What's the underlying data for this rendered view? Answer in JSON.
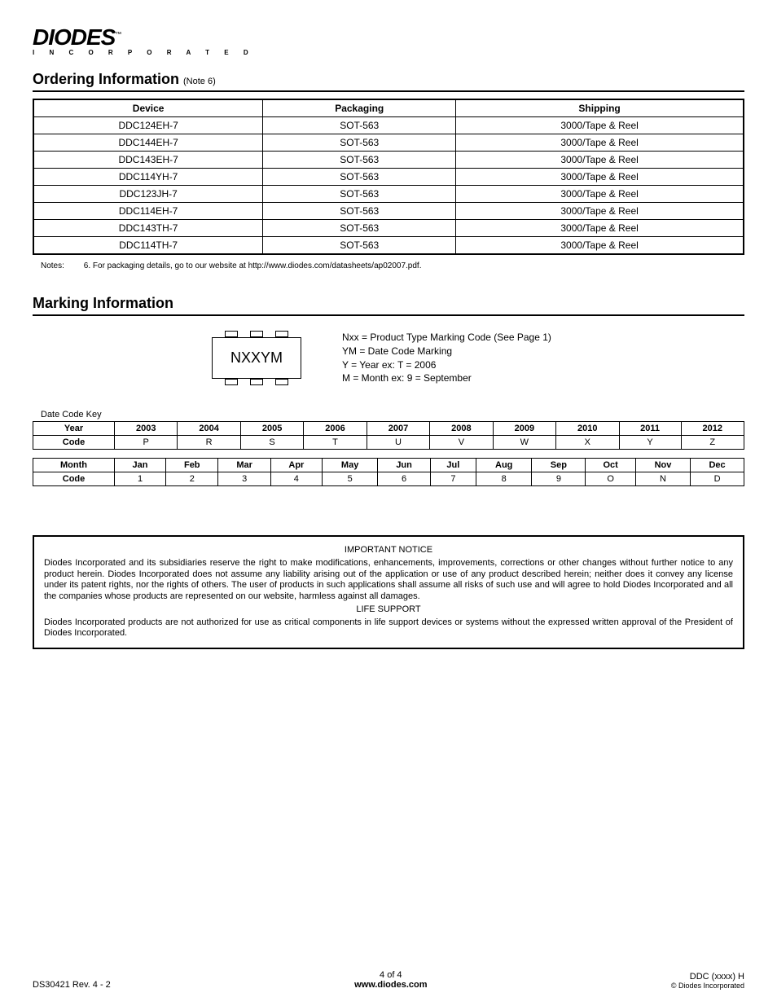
{
  "logo": {
    "main": "DIODES",
    "tm": "™",
    "sub": "I N C O R P O R A T E D"
  },
  "section1": {
    "title": "Ordering Information",
    "note_ref": "(Note 6)",
    "columns": [
      "Device",
      "Packaging",
      "Shipping"
    ],
    "rows": [
      [
        "DDC124EH-7",
        "SOT-563",
        "3000/Tape & Reel"
      ],
      [
        "DDC144EH-7",
        "SOT-563",
        "3000/Tape & Reel"
      ],
      [
        "DDC143EH-7",
        "SOT-563",
        "3000/Tape & Reel"
      ],
      [
        "DDC114YH-7",
        "SOT-563",
        "3000/Tape & Reel"
      ],
      [
        "DDC123JH-7",
        "SOT-563",
        "3000/Tape & Reel"
      ],
      [
        "DDC114EH-7",
        "SOT-563",
        "3000/Tape & Reel"
      ],
      [
        "DDC143TH-7",
        "SOT-563",
        "3000/Tape & Reel"
      ],
      [
        "DDC114TH-7",
        "SOT-563",
        "3000/Tape & Reel"
      ]
    ],
    "notes_label": "Notes:",
    "notes_text": "6. For packaging details, go to our website at http://www.diodes.com/datasheets/ap02007.pdf."
  },
  "section2": {
    "title": "Marking Information",
    "chip_label": "NXXYM",
    "legend": [
      "Nxx = Product Type Marking Code (See Page 1)",
      "YM = Date Code Marking",
      "Y = Year ex: T = 2006",
      "M = Month ex: 9 = September"
    ],
    "datecode_label": "Date Code Key",
    "year_table": {
      "row_heads": [
        "Year",
        "Code"
      ],
      "headers": [
        "2003",
        "2004",
        "2005",
        "2006",
        "2007",
        "2008",
        "2009",
        "2010",
        "2011",
        "2012"
      ],
      "codes": [
        "P",
        "R",
        "S",
        "T",
        "U",
        "V",
        "W",
        "X",
        "Y",
        "Z"
      ]
    },
    "month_table": {
      "row_heads": [
        "Month",
        "Code"
      ],
      "headers": [
        "Jan",
        "Feb",
        "Mar",
        "Apr",
        "May",
        "Jun",
        "Jul",
        "Aug",
        "Sep",
        "Oct",
        "Nov",
        "Dec"
      ],
      "codes": [
        "1",
        "2",
        "3",
        "4",
        "5",
        "6",
        "7",
        "8",
        "9",
        "O",
        "N",
        "D"
      ]
    }
  },
  "notice": {
    "hdr1": "IMPORTANT NOTICE",
    "p1": "Diodes Incorporated and its subsidiaries reserve the right to make modifications, enhancements, improvements, corrections or other changes without further notice to any product herein. Diodes Incorporated does not assume any liability arising out of the application or use of any product described herein; neither does it convey any license under its patent rights, nor the rights of others. The user of products in such applications shall assume all risks of such use and will agree to hold Diodes Incorporated and all the companies whose products are represented on our website, harmless against all damages.",
    "hdr2": "LIFE SUPPORT",
    "p2": "Diodes Incorporated products are not authorized for use as critical components in life support devices or systems without the expressed written approval of the President of Diodes Incorporated."
  },
  "footer": {
    "left": "DS30421 Rev. 4 - 2",
    "center_page": "4 of 4",
    "center_url": "www.diodes.com",
    "right_top": "DDC (xxxx) H",
    "right_bot": "© Diodes Incorporated"
  }
}
